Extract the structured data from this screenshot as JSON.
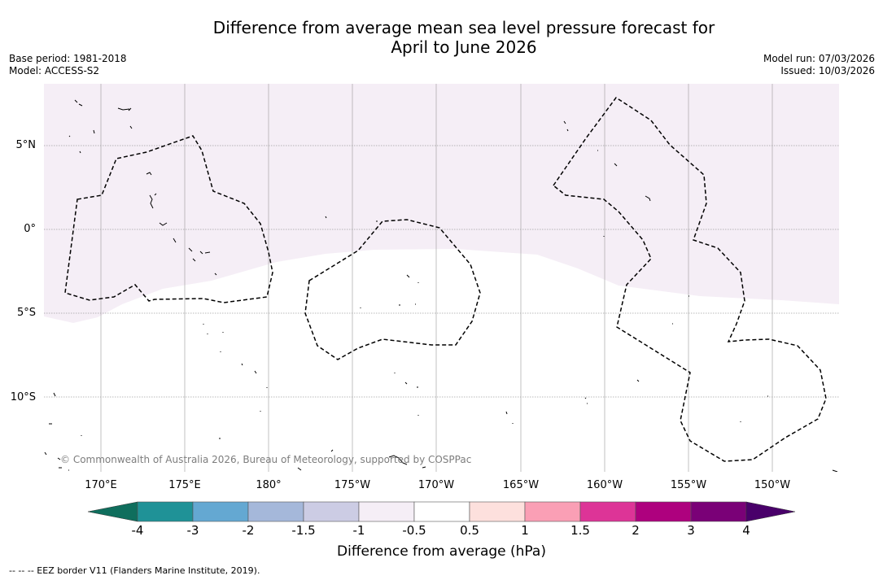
{
  "title_line1": "Difference from average mean sea level pressure forecast for",
  "title_line2": "April to June 2026",
  "meta": {
    "base_period": "Base period: 1981-2018",
    "model": "Model: ACCESS-S2",
    "model_run": "Model run: 07/03/2026",
    "issued": "Issued: 10/03/2026"
  },
  "lat_labels": [
    "5°N",
    "0°",
    "5°S",
    "10°S"
  ],
  "lon_labels": [
    "170°E",
    "175°E",
    "180°",
    "175°W",
    "170°W",
    "165°W",
    "160°W",
    "155°W",
    "150°W"
  ],
  "copyright": "© Commonwealth of Australia 2026, Bureau of Meteorology, supported by COSPPac",
  "colorbar": {
    "title": "Difference from average (hPa)",
    "labels": [
      "-4",
      "-3",
      "-2",
      "-1.5",
      "-1",
      "-0.5",
      "0.5",
      "1",
      "1.5",
      "2",
      "3",
      "4"
    ],
    "colors": {
      "under": "#0f6e5d",
      "bins": [
        "#1f9297",
        "#64a8d2",
        "#a5b8da",
        "#cccce4",
        "#f5eef6",
        "#ffffff",
        "#fde0dd",
        "#fa9fb5",
        "#dd3497",
        "#ae017e",
        "#7a0177"
      ],
      "over": "#49006a"
    }
  },
  "anomaly_fill": "#f5eef6",
  "footnote": "--  --  -- EEZ border V11 (Flanders Marine Institute, 2019)."
}
